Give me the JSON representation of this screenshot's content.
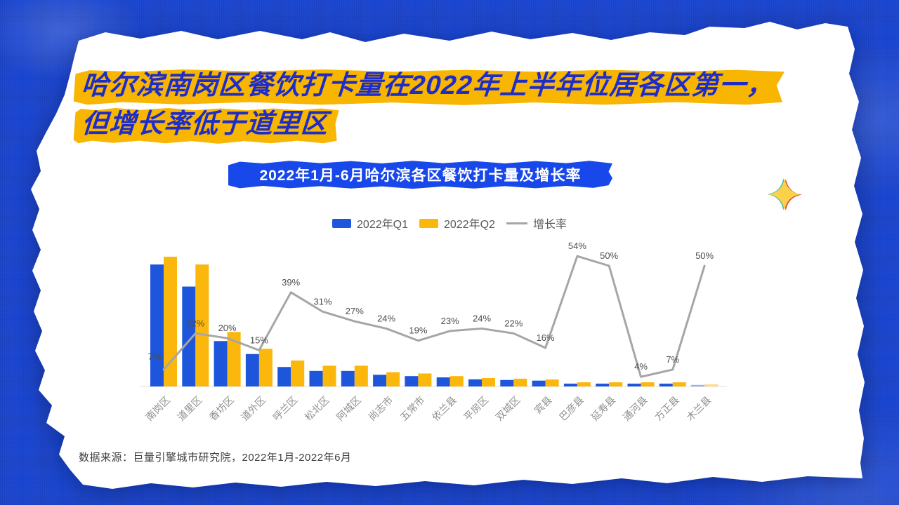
{
  "slide": {
    "title": {
      "line1": "哈尔滨南岗区餐饮打卡量在2022年上半年位居各区第一，",
      "line2": "但增长率低于道里区"
    },
    "source": "数据来源：巨量引擎城市研究院，2022年1月-2022年6月"
  },
  "chart_data": {
    "type": "bar+line combo",
    "title": "2022年1月-6月哈尔滨各区餐饮打卡量及增长率",
    "categories": [
      "南岗区",
      "道里区",
      "香坊区",
      "道外区",
      "呼兰区",
      "松北区",
      "阿城区",
      "尚志市",
      "五常市",
      "依兰县",
      "平房区",
      "双城区",
      "宾县",
      "巴彦县",
      "延寿县",
      "通河县",
      "方正县",
      "木兰县"
    ],
    "series": [
      {
        "name": "2022年Q1",
        "type": "bar",
        "color": "#1d56db",
        "unit": "relative check-in volume (no value axis shown, max bar = 100)",
        "values": [
          94,
          77,
          35,
          25,
          15,
          12,
          12,
          9,
          8,
          7,
          5.5,
          5,
          4.5,
          2.2,
          2.2,
          2.2,
          2.2,
          1.2
        ]
      },
      {
        "name": "2022年Q2",
        "type": "bar",
        "color": "#fbb70c",
        "unit": "relative check-in volume (no value axis shown, max bar = 100)",
        "values": [
          100,
          94,
          42,
          29,
          20,
          16,
          16,
          11,
          10,
          8,
          6.5,
          6,
          5.4,
          3.2,
          3.2,
          3.2,
          3.2,
          1.8
        ]
      },
      {
        "name": "增长率",
        "type": "line",
        "color": "#a6a6a6",
        "unit": "%",
        "values": [
          7,
          22,
          20,
          15,
          39,
          31,
          27,
          24,
          19,
          23,
          24,
          22,
          16,
          54,
          50,
          4,
          7,
          50
        ]
      }
    ],
    "legend": {
      "position": "top-center",
      "items": [
        "2022年Q1",
        "2022年Q2",
        "增长率"
      ]
    },
    "value_axis_visible": false,
    "grid": false,
    "xlabel": "",
    "ylabel": "",
    "line_label_suffix": "%",
    "last_category_bars_faded": true
  },
  "colors": {
    "background_blue": "#1e49d2",
    "paper": "#ffffff",
    "banner_blue": "#1847ea",
    "title_text_blue": "#1f2dc8",
    "highlight_yellow": "#f8b501",
    "bar_blue": "#1d56db",
    "bar_yellow": "#fbb70c",
    "growth_line_gray": "#a6a6a6",
    "axis_line": "#dcdcdc"
  },
  "decorations": {
    "sparkle_icon": {
      "fill": "#fbd14b",
      "left_edge": "#35c4ae",
      "right_edge": "#e0503a"
    }
  }
}
